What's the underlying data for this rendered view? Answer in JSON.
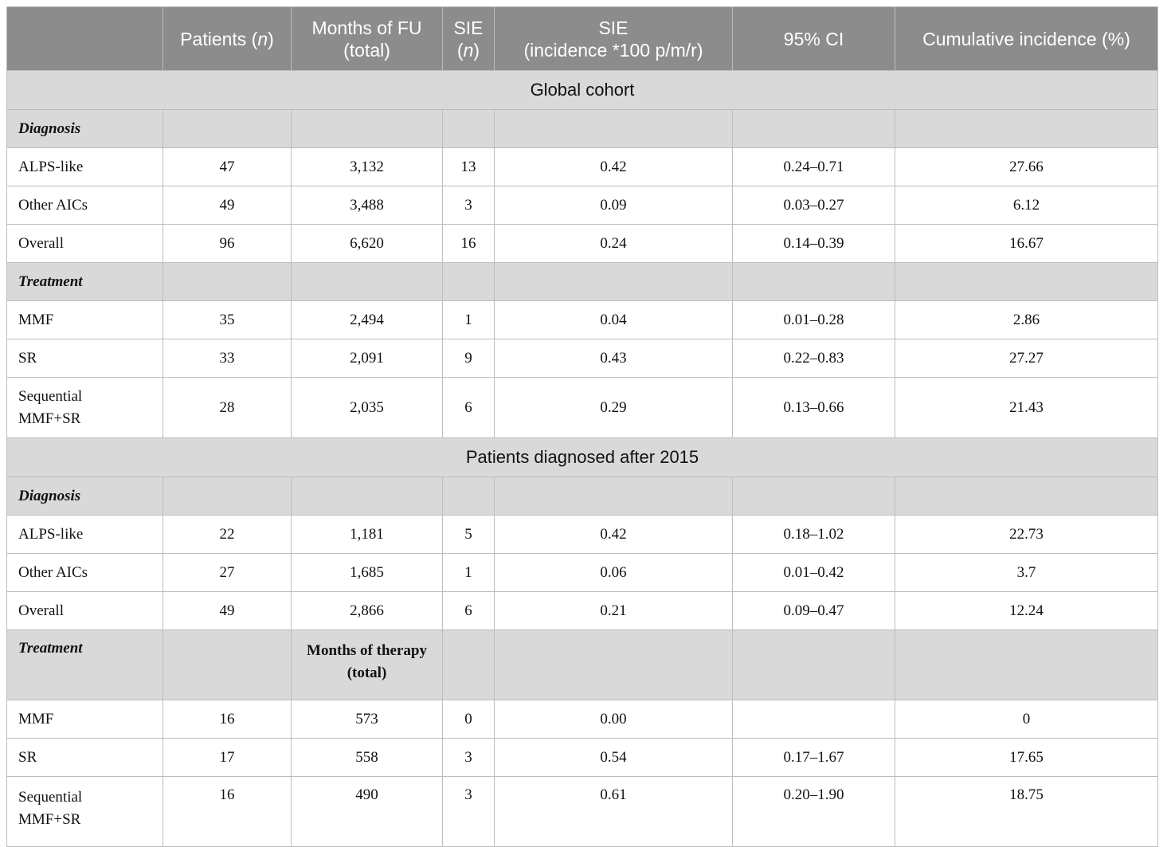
{
  "headers": [
    {
      "text": "",
      "italic": ""
    },
    {
      "text": "Patients (",
      "italic": "n",
      "after": ")"
    },
    {
      "line1": "Months of FU",
      "line2": "(total)"
    },
    {
      "line1": "SIE",
      "line2_pre": "(",
      "line2_italic": "n",
      "line2_post": ")"
    },
    {
      "line1": "SIE",
      "line2": "(incidence *100 p/m/r)"
    },
    {
      "text": "95% CI"
    },
    {
      "text": "Cumulative incidence (%)"
    }
  ],
  "sections": [
    {
      "title": "Global cohort",
      "groups": [
        {
          "label": "Diagnosis",
          "sub": "",
          "rows": [
            {
              "label": "ALPS-like",
              "patients": "47",
              "months": "3,132",
              "sie_n": "13",
              "incidence": "0.42",
              "ci": "0.24–0.71",
              "cumulative": "27.66"
            },
            {
              "label": "Other AICs",
              "patients": "49",
              "months": "3,488",
              "sie_n": "3",
              "incidence": "0.09",
              "ci": "0.03–0.27",
              "cumulative": "6.12"
            },
            {
              "label": "Overall",
              "patients": "96",
              "months": "6,620",
              "sie_n": "16",
              "incidence": "0.24",
              "ci": "0.14–0.39",
              "cumulative": "16.67"
            }
          ]
        },
        {
          "label": "Treatment",
          "sub": "",
          "rows": [
            {
              "label": "MMF",
              "patients": "35",
              "months": "2,494",
              "sie_n": "1",
              "incidence": "0.04",
              "ci": "0.01–0.28",
              "cumulative": "2.86"
            },
            {
              "label": "SR",
              "patients": "33",
              "months": "2,091",
              "sie_n": "9",
              "incidence": "0.43",
              "ci": "0.22–0.83",
              "cumulative": "27.27"
            },
            {
              "label1": "Sequential",
              "label2": "MMF+SR",
              "patients": "28",
              "months": "2,035",
              "sie_n": "6",
              "incidence": "0.29",
              "ci": "0.13–0.66",
              "cumulative": "21.43"
            }
          ]
        }
      ]
    },
    {
      "title": "Patients diagnosed after 2015",
      "groups": [
        {
          "label": "Diagnosis",
          "sub": "",
          "rows": [
            {
              "label": "ALPS-like",
              "patients": "22",
              "months": "1,181",
              "sie_n": "5",
              "incidence": "0.42",
              "ci": "0.18–1.02",
              "cumulative": "22.73"
            },
            {
              "label": "Other AICs",
              "patients": "27",
              "months": "1,685",
              "sie_n": "1",
              "incidence": "0.06",
              "ci": "0.01–0.42",
              "cumulative": "3.7"
            },
            {
              "label": "Overall",
              "patients": "49",
              "months": "2,866",
              "sie_n": "6",
              "incidence": "0.21",
              "ci": "0.09–0.47",
              "cumulative": "12.24"
            }
          ]
        },
        {
          "label": "Treatment",
          "sub1": "Months of therapy",
          "sub2": "(total)",
          "rows": [
            {
              "label": "MMF",
              "patients": "16",
              "months": "573",
              "sie_n": "0",
              "incidence": "0.00",
              "ci": "",
              "cumulative": "0"
            },
            {
              "label": "SR",
              "patients": "17",
              "months": "558",
              "sie_n": "3",
              "incidence": "0.54",
              "ci": "0.17–1.67",
              "cumulative": "17.65"
            },
            {
              "label1": "Sequential",
              "label2": "MMF+SR",
              "patients": "16",
              "months": "490",
              "sie_n": "3",
              "incidence": "0.61",
              "ci": "0.20–1.90",
              "cumulative": "18.75"
            }
          ]
        }
      ]
    }
  ]
}
